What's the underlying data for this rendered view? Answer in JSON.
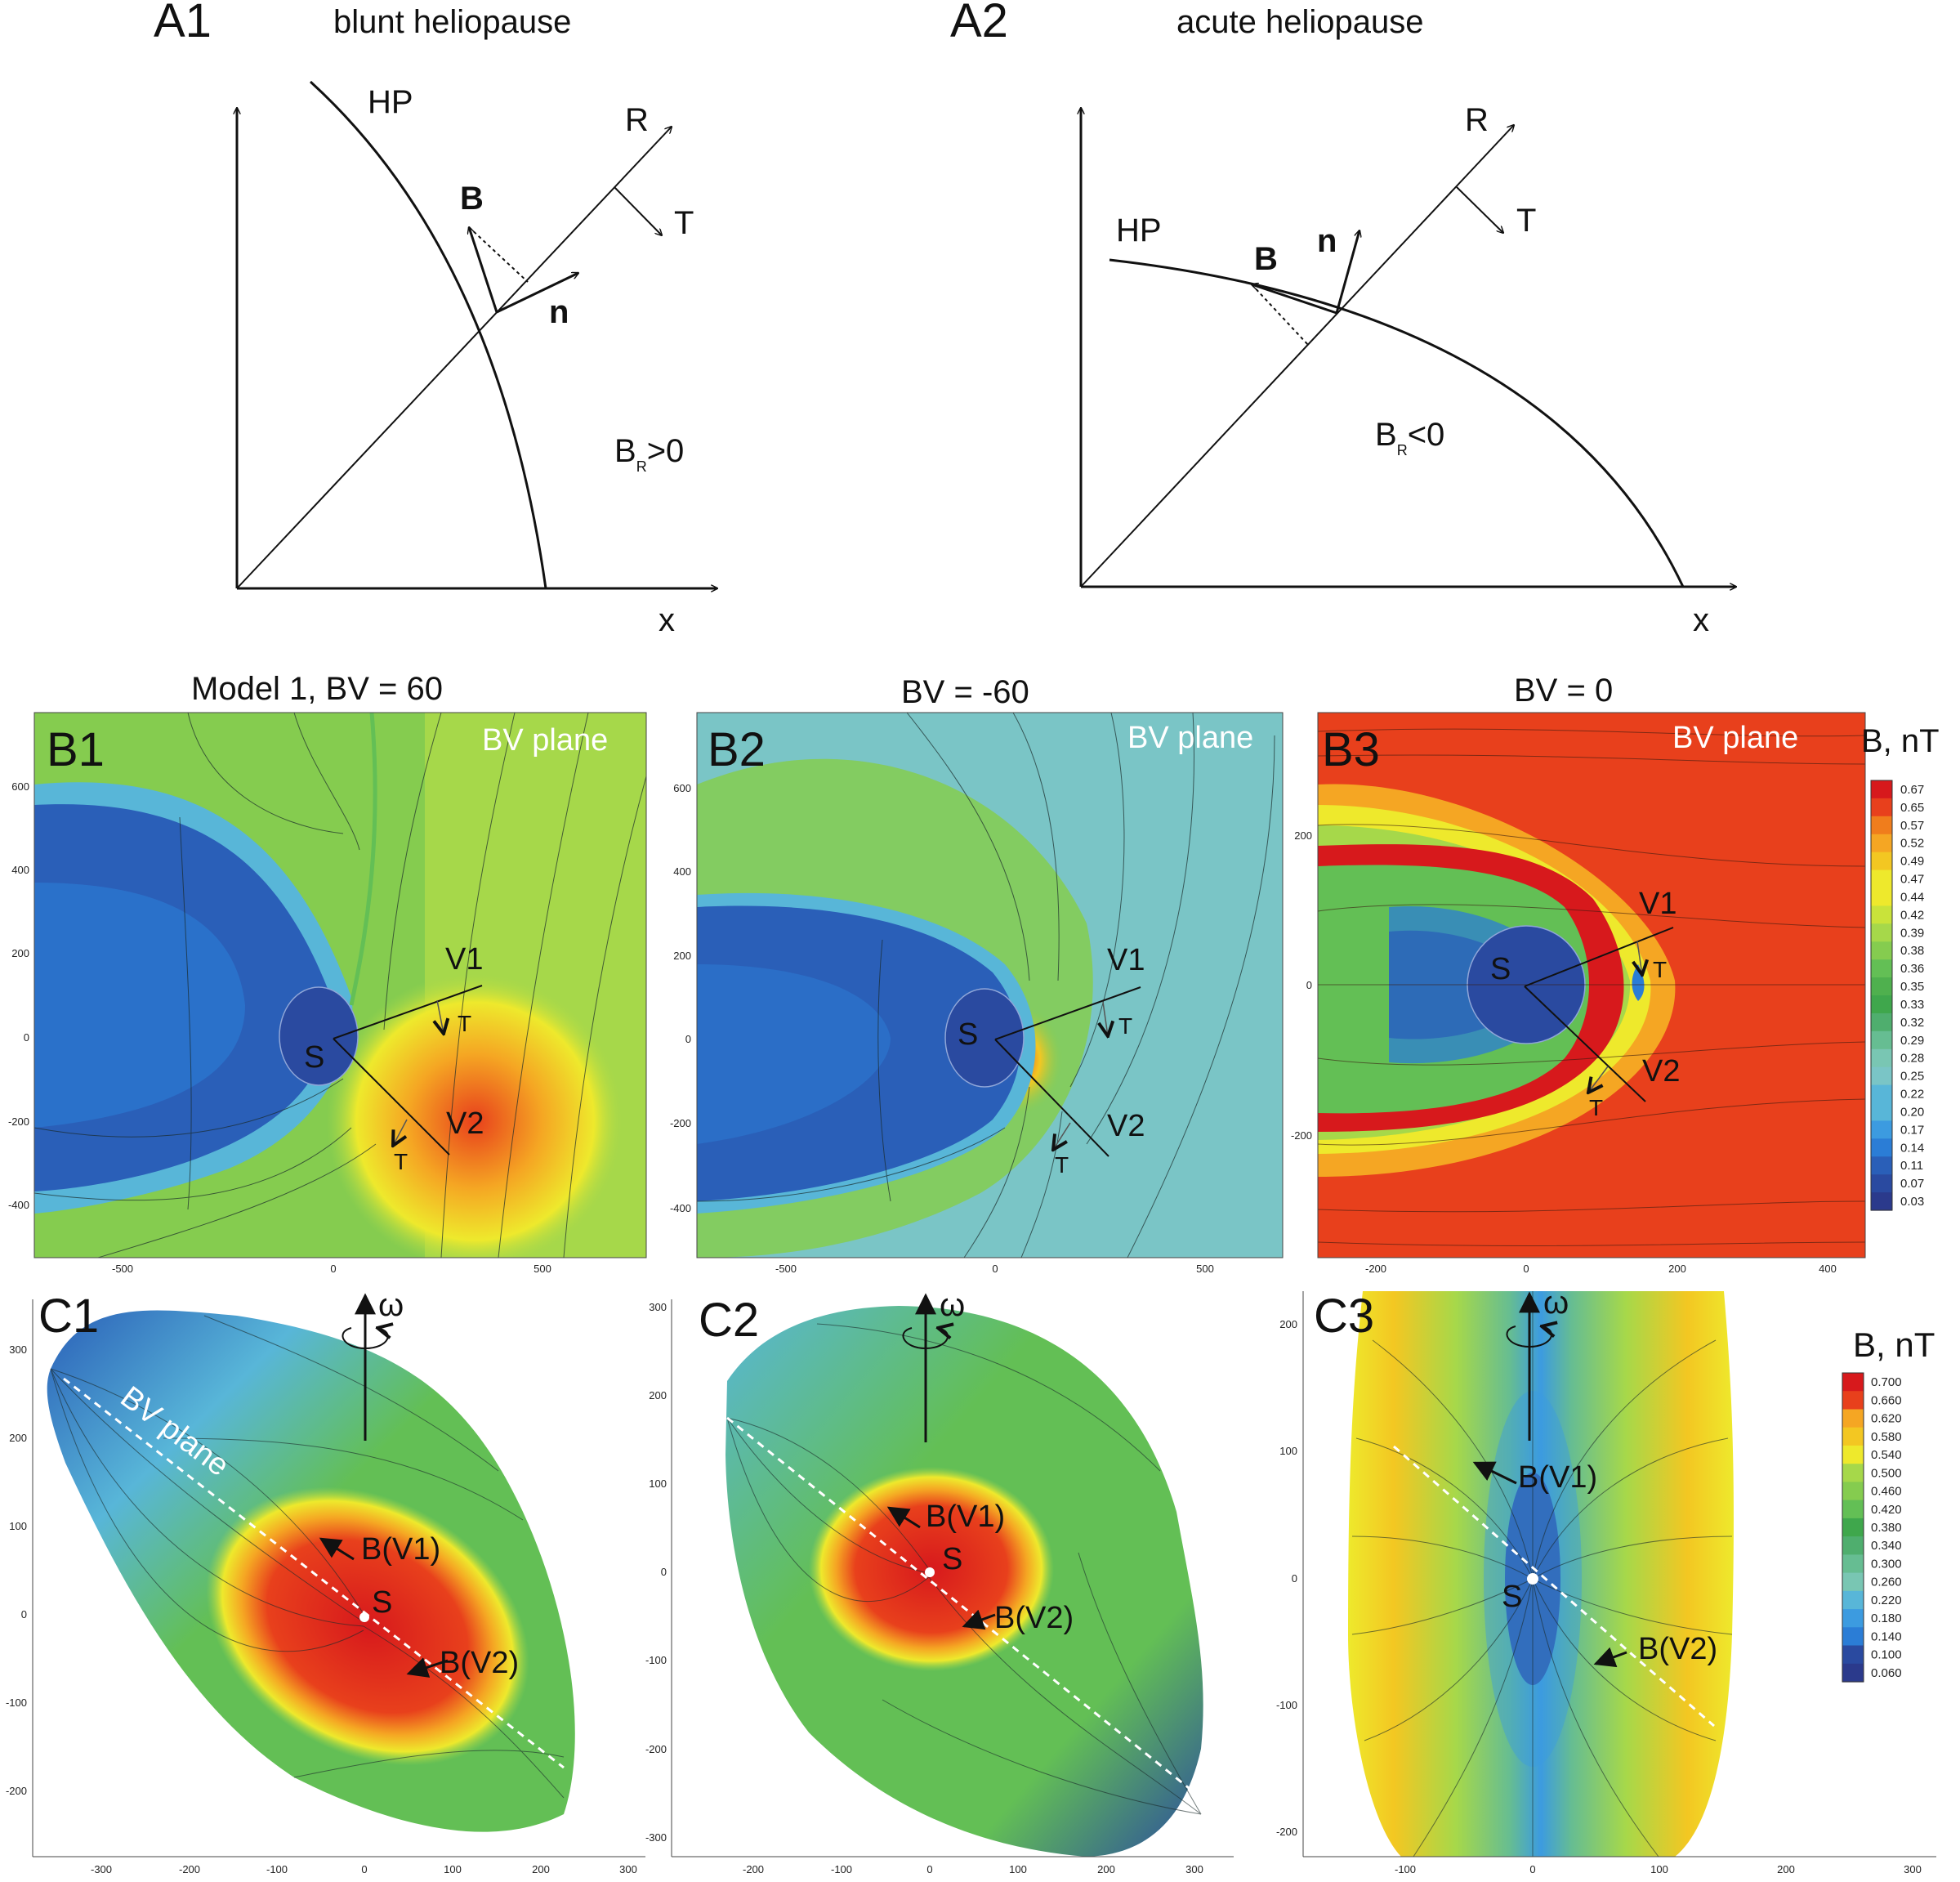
{
  "panels": {
    "a1": {
      "label": "A1",
      "title": "blunt heliopause",
      "hp": "HP",
      "r": "R",
      "t": "T",
      "b": "B",
      "n": "n",
      "x": "x",
      "br_base": "B",
      "br_sub": "R",
      "br_rel": ">0"
    },
    "a2": {
      "label": "A2",
      "title": "acute heliopause",
      "hp": "HP",
      "r": "R",
      "t": "T",
      "b": "B",
      "n": "n",
      "x": "x",
      "br_base": "B",
      "br_sub": "R",
      "br_rel": "<0"
    },
    "b1": {
      "label": "B1",
      "heading": "Model 1, BV = 60",
      "plane": "BV plane",
      "s": "S",
      "v1": "V1",
      "v2": "V2",
      "t1": "T",
      "t2": "T",
      "xticks": [
        "-500",
        "0",
        "500"
      ],
      "yticks": [
        "600",
        "400",
        "200",
        "0",
        "-200",
        "-400"
      ]
    },
    "b2": {
      "label": "B2",
      "heading": "BV = -60",
      "plane": "BV plane",
      "s": "S",
      "v1": "V1",
      "v2": "V2",
      "t1": "T",
      "t2": "T",
      "xticks": [
        "-500",
        "0",
        "500"
      ],
      "yticks": [
        "600",
        "400",
        "200",
        "0",
        "-200",
        "-400"
      ]
    },
    "b3": {
      "label": "B3",
      "heading": "BV = 0",
      "plane": "BV plane",
      "s": "S",
      "v1": "V1",
      "v2": "V2",
      "t1": "T",
      "t2": "T",
      "xticks": [
        "-200",
        "0",
        "200",
        "400"
      ],
      "yticks": [
        "200",
        "0",
        "-200"
      ]
    },
    "c1": {
      "label": "C1",
      "omega": "ω",
      "plane": "BV plane",
      "s": "S",
      "bv1": "B(V1)",
      "bv2": "B(V2)",
      "xticks": [
        "-300",
        "-200",
        "-100",
        "0",
        "100",
        "200",
        "300"
      ],
      "yticks": [
        "300",
        "200",
        "100",
        "0",
        "-100",
        "-200"
      ]
    },
    "c2": {
      "label": "C2",
      "omega": "ω",
      "s": "S",
      "bv1": "B(V1)",
      "bv2": "B(V2)",
      "xticks": [
        "-200",
        "-100",
        "0",
        "100",
        "200",
        "300"
      ],
      "yticks": [
        "300",
        "200",
        "100",
        "0",
        "-100",
        "-200",
        "-300"
      ]
    },
    "c3": {
      "label": "C3",
      "omega": "ω",
      "s": "S",
      "bv1": "B(V1)",
      "bv2": "B(V2)",
      "xticks": [
        "-100",
        "0",
        "100",
        "200",
        "300"
      ],
      "yticks": [
        "200",
        "100",
        "0",
        "-100",
        "-200"
      ]
    }
  },
  "colorbars": {
    "b": {
      "title": "B, nT",
      "values": [
        "0.67",
        "0.65",
        "0.57",
        "0.52",
        "0.49",
        "0.47",
        "0.44",
        "0.42",
        "0.39",
        "0.38",
        "0.36",
        "0.35",
        "0.33",
        "0.32",
        "0.29",
        "0.28",
        "0.25",
        "0.22",
        "0.20",
        "0.17",
        "0.14",
        "0.11",
        "0.07",
        "0.03"
      ]
    },
    "c": {
      "title": "B, nT",
      "values": [
        "0.700",
        "0.660",
        "0.620",
        "0.580",
        "0.540",
        "0.500",
        "0.460",
        "0.420",
        "0.380",
        "0.340",
        "0.300",
        "0.260",
        "0.220",
        "0.180",
        "0.140",
        "0.100",
        "0.060"
      ]
    }
  },
  "palette": [
    "#d7191c",
    "#e8401c",
    "#f07d1c",
    "#f5a623",
    "#f3c722",
    "#eee92c",
    "#c9e33a",
    "#a6d84a",
    "#85cc4f",
    "#63bf55",
    "#4fb04e",
    "#3fa74c",
    "#4fae6e",
    "#66bd92",
    "#79c6b3",
    "#7ac5c6",
    "#58b6d8",
    "#3c9be0",
    "#2b7dd6",
    "#2a5fb8",
    "#2a4aa0",
    "#2b3a8c"
  ]
}
